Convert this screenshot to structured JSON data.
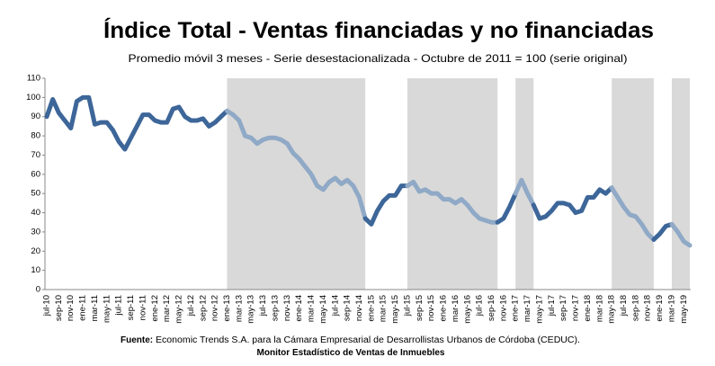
{
  "chart_data": {
    "type": "line",
    "title": "Índice Total - Ventas financiadas y no financiadas",
    "subtitle": "Promedio móvil 3 meses - Serie desestacionalizada - Octubre de 2011 = 100 (serie original)",
    "source_label": "Fuente:",
    "source_text": "Economic Trends S.A. para la Cámara Empresarial de Desarrollistas Urbanos de Córdoba (CEDUC).",
    "note": "Monitor Estadístico de Ventas de Inmuebles",
    "categories": [
      "jul-10",
      null,
      "sep-10",
      null,
      "nov-10",
      null,
      "ene-11",
      null,
      "mar-11",
      null,
      "may-11",
      null,
      "jul-11",
      null,
      "sep-11",
      null,
      "nov-11",
      null,
      "ene-12",
      null,
      "mar-12",
      null,
      "may-12",
      null,
      "jul-12",
      null,
      "sep-12",
      null,
      "nov-12",
      null,
      "ene-13",
      null,
      "mar-13",
      null,
      "may-13",
      null,
      "jul-13",
      null,
      "sep-13",
      null,
      "nov-13",
      null,
      "ene-14",
      null,
      "mar-14",
      null,
      "may-14",
      null,
      "jul-14",
      null,
      "sep-14",
      null,
      "nov-14",
      null,
      "ene-15",
      null,
      "mar-15",
      null,
      "may-15",
      null,
      "jul-15",
      null,
      "sep-15",
      null,
      "nov-15",
      null,
      "ene-16",
      null,
      "mar-16",
      null,
      "may-16",
      null,
      "jul-16",
      null,
      "sep-16",
      null,
      "nov-16",
      null,
      "ene-17",
      null,
      "mar-17",
      null,
      "may-17",
      null,
      "jul-17",
      null,
      "sep-17",
      null,
      "nov-17",
      null,
      "ene-18",
      null,
      "mar-18",
      null,
      "may-18",
      null,
      "jul-18",
      null,
      "sep-18",
      null,
      "nov-18",
      null,
      "ene-19",
      null,
      "mar-19",
      null,
      "may-19",
      null
    ],
    "values": [
      90,
      99,
      92,
      88,
      84,
      98,
      100,
      100,
      86,
      87,
      87,
      83,
      77,
      73,
      79,
      85,
      91,
      91,
      88,
      87,
      87,
      94,
      95,
      90,
      88,
      88,
      89,
      85,
      87,
      90,
      93,
      91,
      88,
      80,
      79,
      76,
      78,
      79,
      79,
      78,
      76,
      71,
      68,
      64,
      60,
      54,
      52,
      56,
      58,
      55,
      57,
      54,
      48,
      37,
      34,
      41,
      46,
      49,
      49,
      54,
      54,
      56,
      51,
      52,
      50,
      50,
      47,
      47,
      45,
      47,
      44,
      40,
      37,
      36,
      35,
      35,
      37,
      43,
      50,
      57,
      50,
      44,
      37,
      38,
      41,
      45,
      45,
      44,
      40,
      41,
      48,
      48,
      52,
      50,
      53,
      48,
      43,
      39,
      38,
      34,
      29,
      26,
      29,
      33,
      34,
      30,
      25,
      23
    ],
    "color": "#3d6699",
    "shaded_color": "#8fa9c6",
    "shade_fill": "#d9d9d9",
    "shaded_ranges": [
      [
        30,
        53
      ],
      [
        60,
        75
      ],
      [
        78,
        81
      ],
      [
        94,
        101
      ],
      [
        104,
        107
      ]
    ],
    "ylim": [
      0,
      110
    ],
    "yticks": [
      0,
      10,
      20,
      30,
      40,
      50,
      60,
      70,
      80,
      90,
      100,
      110
    ],
    "grid": false
  }
}
